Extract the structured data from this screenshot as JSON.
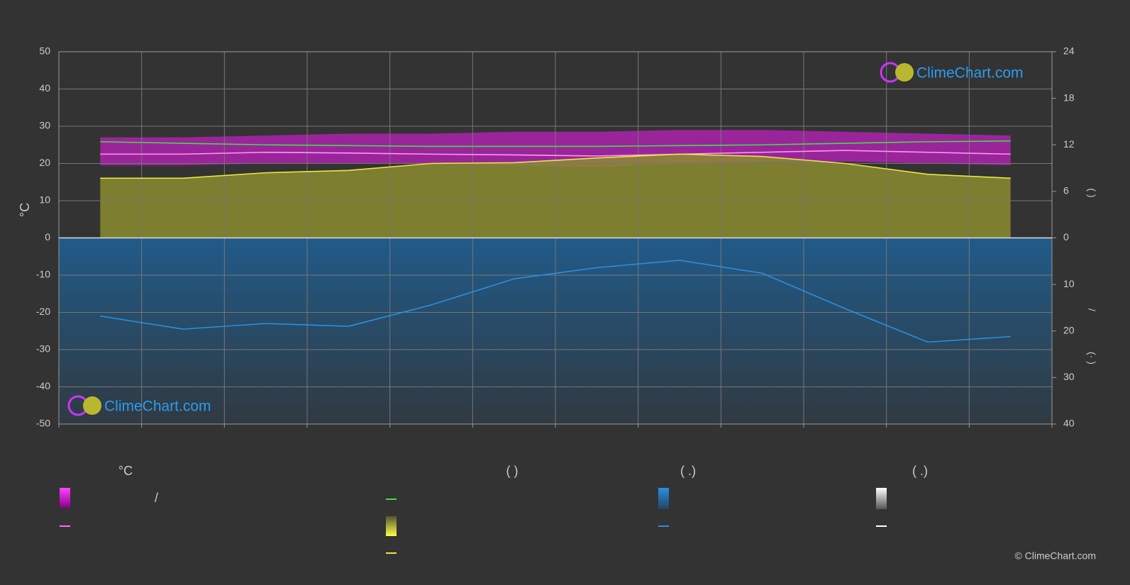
{
  "chart_data": {
    "type": "climate",
    "categories": [
      null,
      null,
      null,
      null,
      null,
      null,
      null,
      null,
      null,
      null,
      null,
      null
    ],
    "ylabel": "°C",
    "ylim": [
      -50,
      50
    ],
    "yticks": [
      50,
      40,
      30,
      20,
      10,
      0,
      -10,
      -20,
      -30,
      -40,
      -50
    ],
    "y2lim": [
      0,
      24
    ],
    "y2ticks": [
      0,
      6,
      12,
      18,
      24
    ],
    "y2label_top": "(      )",
    "y2label_mid": "/",
    "y2label_bottom": "(·   )",
    "y3lim": [
      0,
      40
    ],
    "y3ticks": [
      10,
      20,
      30,
      40
    ],
    "grid": true,
    "band": {
      "color": "#d21ed2",
      "upper": [
        27,
        27,
        27.5,
        28,
        28,
        28.5,
        28.5,
        29,
        29,
        28.5,
        28,
        27.5
      ],
      "lower": [
        19.5,
        19.5,
        20,
        20,
        20,
        19.5,
        19,
        20,
        20.5,
        20.5,
        20,
        19.5
      ]
    },
    "series": [
      {
        "color": "#ff99ee",
        "values": [
          22.5,
          22.5,
          23,
          22.8,
          22.5,
          22.3,
          22,
          22.5,
          23,
          23.5,
          23,
          22.5
        ]
      },
      {
        "color": "#44dd44",
        "axis": "y2",
        "values": [
          12.4,
          12.2,
          12.0,
          11.9,
          11.8,
          11.8,
          11.8,
          11.9,
          12.0,
          12.2,
          12.4,
          12.5
        ]
      },
      {
        "color": "#e8e840",
        "axis": "y2",
        "fill": "#8c8c30",
        "values": [
          7.7,
          7.7,
          8.4,
          8.7,
          9.6,
          9.7,
          10.3,
          10.8,
          10.5,
          9.6,
          8.2,
          7.7
        ]
      },
      {
        "color": "#2a8fe0",
        "axis": "y3",
        "values": [
          16.8,
          19.6,
          18.4,
          19,
          14.4,
          8.8,
          6.4,
          4.8,
          7.6,
          15.2,
          22.4,
          21.2
        ]
      }
    ],
    "legend_headers": [
      "°C",
      "(          )",
      "(   .)",
      "(   .)"
    ],
    "legend_slash": "/",
    "watermark": "ClimeChart.com",
    "copyright": "© ClimeChart.com"
  }
}
